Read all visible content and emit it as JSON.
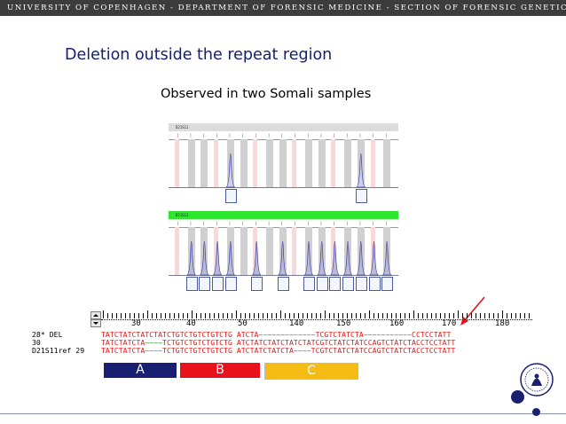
{
  "header": {
    "banner": "UNIVERSITY OF COPENHAGEN - DEPARTMENT OF FORENSIC MEDICINE - SECTION OF FORENSIC GENETICS"
  },
  "slide": {
    "title": "Deletion outside the repeat region",
    "subtitle": "Observed in two Somali samples"
  },
  "electropherograms": [
    {
      "sample_label": "D21S11",
      "strip_color": "#dcdcdc",
      "peaks_at_bins": [
        4,
        14
      ]
    },
    {
      "sample_label": "D21S11",
      "strip_color": "#2fe62f",
      "peaks_at_bins": [
        1,
        2,
        3,
        4,
        6,
        8,
        10,
        11,
        12,
        13,
        14,
        15,
        16
      ]
    }
  ],
  "alignment": {
    "ruler_numbers": [
      "30",
      "40",
      "50",
      "140",
      "150",
      "160",
      "170",
      "180"
    ],
    "rows": [
      {
        "name": "28* DEL",
        "segments": [
          {
            "c": "r",
            "t": "TATCTATCTATCTATCTGTCTGTCTGTCTG"
          },
          {
            "c": "k",
            "t": " "
          },
          {
            "c": "r",
            "t": "ATCTA"
          },
          {
            "c": "g",
            "t": "~~~~~~~~~~~~~"
          },
          {
            "c": "r",
            "t": "TCGTCTATCTA"
          },
          {
            "c": "g",
            "t": "~~~~~~~~~~~"
          },
          {
            "c": "r",
            "t": "CCTCCTATT"
          }
        ]
      },
      {
        "name": "30",
        "segments": [
          {
            "c": "r",
            "t": "TATCTATCTA"
          },
          {
            "c": "g",
            "t": "~~~~"
          },
          {
            "c": "r",
            "t": "TCTGTCTGTCTGTCTG"
          },
          {
            "c": "k",
            "t": " "
          },
          {
            "c": "r",
            "t": "ATCTATCTATCTATCTATCGTCTATCTATCCAGTCTATCTACCTCCTATT"
          }
        ]
      },
      {
        "name": "D21S11ref 29",
        "segments": [
          {
            "c": "r",
            "t": "TATCTATCTA"
          },
          {
            "c": "g",
            "t": "~~~~"
          },
          {
            "c": "r",
            "t": "TCTGTCTGTCTGTCTG"
          },
          {
            "c": "k",
            "t": " "
          },
          {
            "c": "r",
            "t": "ATCTATCTATCTA"
          },
          {
            "c": "g",
            "t": "~~~~"
          },
          {
            "c": "r",
            "t": "TCGTCTATCTATCCAGTCTATCTACCTCCTATT"
          }
        ]
      }
    ]
  },
  "regions": [
    {
      "label": "A",
      "color": "#1a2071"
    },
    {
      "label": "B",
      "color": "#e8121c"
    },
    {
      "label": "C",
      "color": "#f6bc16"
    }
  ],
  "annotation": {
    "arrow_color": "#e8121c"
  }
}
